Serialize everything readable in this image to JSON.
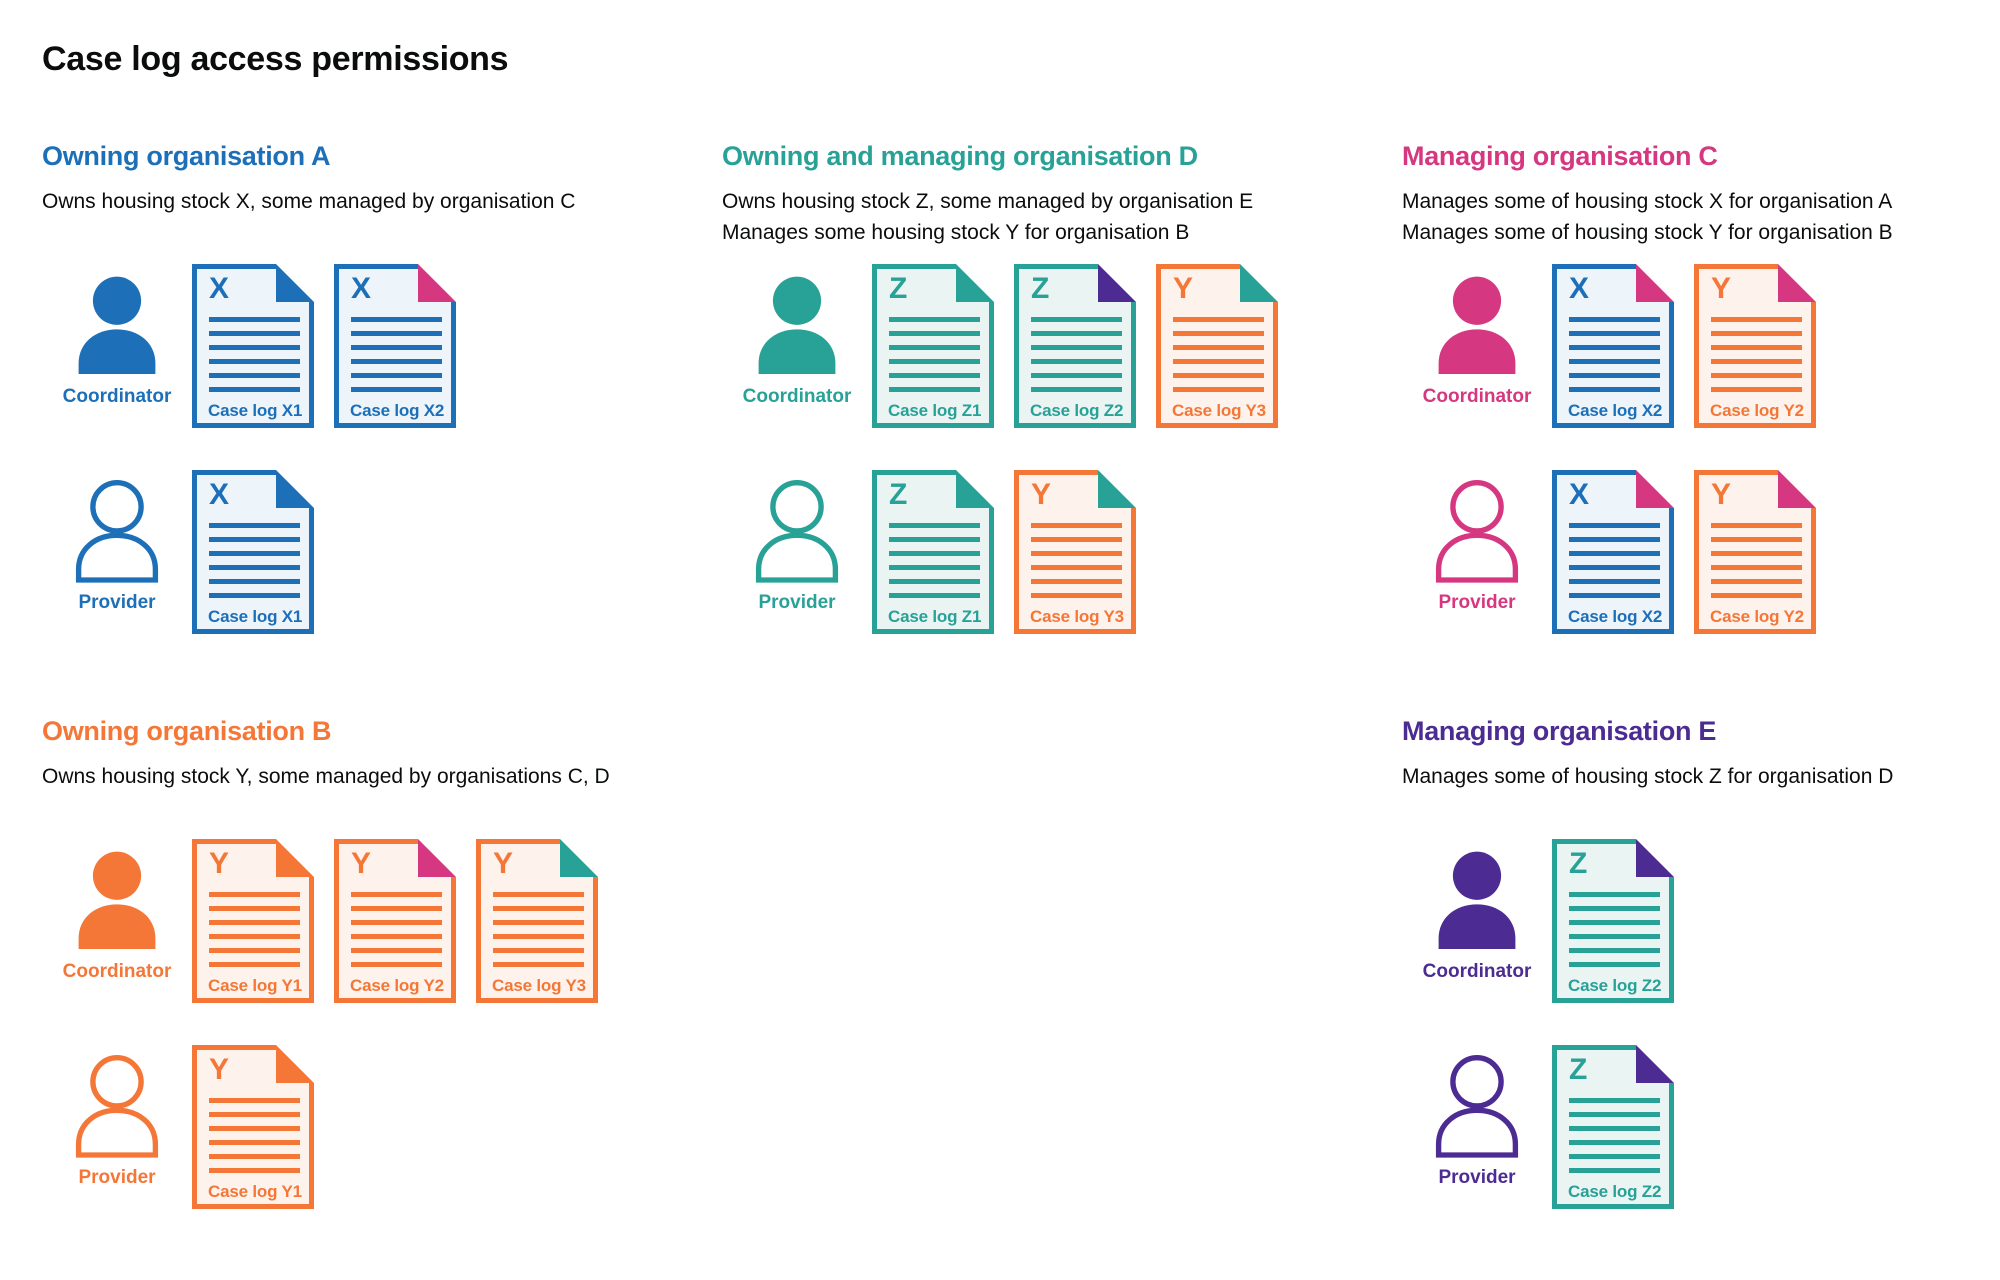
{
  "page": {
    "title": "Case log access permissions"
  },
  "colors": {
    "palette": {
      "blue": "#1d70b8",
      "teal": "#28a197",
      "orange": "#f47738",
      "pink": "#d53880",
      "purple": "#4c2c92",
      "text": "#0b0c0c"
    },
    "tints": {
      "blue": "#edf4fa",
      "teal": "#eaf5f3",
      "orange": "#fdf3ec"
    }
  },
  "sections": [
    {
      "id": "owning-organisation-a",
      "title": "Owning organisation A",
      "color": "blue",
      "description": [
        "Owns housing stock X, some managed by organisation C"
      ],
      "rows": [
        {
          "role": "Coordinator",
          "icon": "person-filled-icon",
          "docs": [
            {
              "letter": "X",
              "label": "Case log X1",
              "doc_color": "blue",
              "fold_color": "blue"
            },
            {
              "letter": "X",
              "label": "Case log X2",
              "doc_color": "blue",
              "fold_color": "pink"
            }
          ]
        },
        {
          "role": "Provider",
          "icon": "person-outline-icon",
          "docs": [
            {
              "letter": "X",
              "label": "Case log X1",
              "doc_color": "blue",
              "fold_color": "blue"
            }
          ]
        }
      ]
    },
    {
      "id": "owning-and-managing-organisation-d",
      "title": "Owning and managing organisation D",
      "color": "teal",
      "description": [
        "Owns housing stock Z, some managed by organisation E",
        "Manages some housing stock Y for organisation B"
      ],
      "rows": [
        {
          "role": "Coordinator",
          "icon": "person-filled-icon",
          "docs": [
            {
              "letter": "Z",
              "label": "Case log Z1",
              "doc_color": "teal",
              "fold_color": "teal"
            },
            {
              "letter": "Z",
              "label": "Case log Z2",
              "doc_color": "teal",
              "fold_color": "purple"
            },
            {
              "letter": "Y",
              "label": "Case log Y3",
              "doc_color": "orange",
              "fold_color": "teal"
            }
          ]
        },
        {
          "role": "Provider",
          "icon": "person-outline-icon",
          "docs": [
            {
              "letter": "Z",
              "label": "Case log Z1",
              "doc_color": "teal",
              "fold_color": "teal"
            },
            {
              "letter": "Y",
              "label": "Case log Y3",
              "doc_color": "orange",
              "fold_color": "teal"
            }
          ]
        }
      ]
    },
    {
      "id": "managing-organisation-c",
      "title": "Managing organisation C",
      "color": "pink",
      "description": [
        "Manages some of housing stock X for organisation A",
        "Manages some of housing stock Y for organisation B"
      ],
      "rows": [
        {
          "role": "Coordinator",
          "icon": "person-filled-icon",
          "docs": [
            {
              "letter": "X",
              "label": "Case log X2",
              "doc_color": "blue",
              "fold_color": "pink"
            },
            {
              "letter": "Y",
              "label": "Case log Y2",
              "doc_color": "orange",
              "fold_color": "pink"
            }
          ]
        },
        {
          "role": "Provider",
          "icon": "person-outline-icon",
          "docs": [
            {
              "letter": "X",
              "label": "Case log X2",
              "doc_color": "blue",
              "fold_color": "pink"
            },
            {
              "letter": "Y",
              "label": "Case log Y2",
              "doc_color": "orange",
              "fold_color": "pink"
            }
          ]
        }
      ]
    },
    {
      "id": "owning-organisation-b",
      "title": "Owning organisation B",
      "color": "orange",
      "description": [
        "Owns housing stock Y, some managed by organisations C, D"
      ],
      "rows": [
        {
          "role": "Coordinator",
          "icon": "person-filled-icon",
          "docs": [
            {
              "letter": "Y",
              "label": "Case log Y1",
              "doc_color": "orange",
              "fold_color": "orange"
            },
            {
              "letter": "Y",
              "label": "Case log Y2",
              "doc_color": "orange",
              "fold_color": "pink"
            },
            {
              "letter": "Y",
              "label": "Case log Y3",
              "doc_color": "orange",
              "fold_color": "teal"
            }
          ]
        },
        {
          "role": "Provider",
          "icon": "person-outline-icon",
          "docs": [
            {
              "letter": "Y",
              "label": "Case log Y1",
              "doc_color": "orange",
              "fold_color": "orange"
            }
          ]
        }
      ]
    },
    {
      "id": "managing-organisation-e",
      "title": "Managing organisation E",
      "color": "purple",
      "description": [
        "Manages some of housing stock Z for organisation D"
      ],
      "rows": [
        {
          "role": "Coordinator",
          "icon": "person-filled-icon",
          "docs": [
            {
              "letter": "Z",
              "label": "Case log Z2",
              "doc_color": "teal",
              "fold_color": "purple"
            }
          ]
        },
        {
          "role": "Provider",
          "icon": "person-outline-icon",
          "docs": [
            {
              "letter": "Z",
              "label": "Case log Z2",
              "doc_color": "teal",
              "fold_color": "purple"
            }
          ]
        }
      ]
    }
  ]
}
